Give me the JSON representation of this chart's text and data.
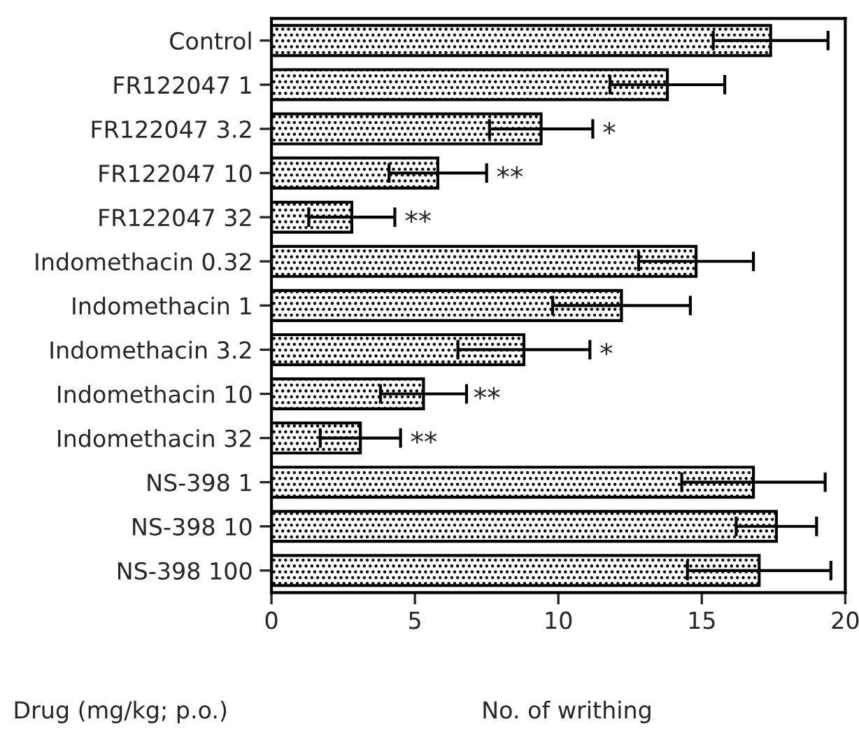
{
  "chart_data": {
    "type": "bar",
    "orientation": "horizontal",
    "xlabel": "No. of writhing",
    "ylabel": "Drug (mg/kg; p.o.)",
    "categories": [
      "Control",
      "FR122047 1",
      "FR122047 3.2",
      "FR122047 10",
      "FR122047 32",
      "Indomethacin 0.32",
      "Indomethacin 1",
      "Indomethacin 3.2",
      "Indomethacin 10",
      "Indomethacin 32",
      "NS-398 1",
      "NS-398 10",
      "NS-398 100"
    ],
    "values": [
      17.4,
      13.8,
      9.4,
      5.8,
      2.8,
      14.8,
      12.2,
      8.8,
      5.3,
      3.1,
      16.8,
      17.6,
      17.0
    ],
    "errors": [
      2.0,
      2.0,
      1.8,
      1.7,
      1.5,
      2.0,
      2.4,
      2.3,
      1.5,
      1.4,
      2.5,
      1.4,
      2.5
    ],
    "color": "#000000",
    "xlim": [
      0,
      20
    ],
    "xticks": [
      0,
      5,
      10,
      15,
      20
    ],
    "grid": false,
    "annotations": [
      {
        "text": "*",
        "x": 11.2,
        "y": "FR122047 3.2"
      },
      {
        "text": "**",
        "x": 7.5,
        "y": "FR122047 10"
      },
      {
        "text": "**",
        "x": 4.3,
        "y": "FR122047 32"
      },
      {
        "text": "*",
        "x": 11.1,
        "y": "Indomethacin 3.2"
      },
      {
        "text": "**",
        "x": 6.7,
        "y": "Indomethacin 10"
      },
      {
        "text": "**",
        "x": 4.5,
        "y": "Indomethacin 32"
      }
    ]
  }
}
